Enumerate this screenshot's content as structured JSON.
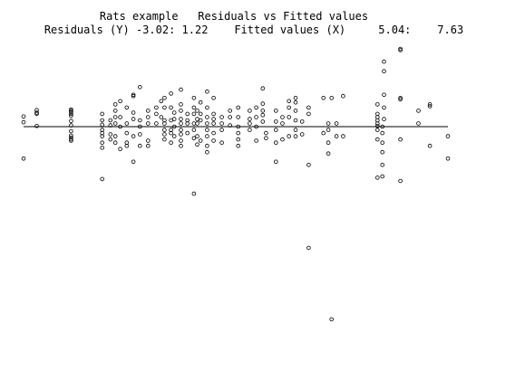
{
  "header": {
    "title": "Rats example   Residuals vs Fitted values",
    "range_line": "Residuals (Y) -3.02: 1.22    Fitted values (X)     5.04:    7.63"
  },
  "chart_data": {
    "type": "scatter",
    "title": "Rats example   Residuals vs Fitted values",
    "xlabel": "Fitted values (X)",
    "ylabel": "Residuals (Y)",
    "xlim": [
      5.04,
      7.63
    ],
    "ylim": [
      -3.02,
      1.22
    ],
    "reference_line_y": 0,
    "grid": false,
    "points": [
      [
        5.04,
        0.16
      ],
      [
        5.04,
        0.07
      ],
      [
        5.04,
        -0.5
      ],
      [
        5.12,
        0.26
      ],
      [
        5.12,
        0.22
      ],
      [
        5.12,
        0.2
      ],
      [
        5.12,
        0.01
      ],
      [
        5.33,
        0.27
      ],
      [
        5.33,
        0.25
      ],
      [
        5.33,
        0.23
      ],
      [
        5.33,
        0.2
      ],
      [
        5.33,
        0.17
      ],
      [
        5.33,
        0.09
      ],
      [
        5.33,
        0.02
      ],
      [
        5.33,
        -0.07
      ],
      [
        5.33,
        -0.14
      ],
      [
        5.33,
        -0.17
      ],
      [
        5.33,
        -0.2
      ],
      [
        5.33,
        -0.22
      ],
      [
        5.52,
        0.2
      ],
      [
        5.52,
        0.1
      ],
      [
        5.52,
        0.03
      ],
      [
        5.52,
        -0.05
      ],
      [
        5.52,
        -0.1
      ],
      [
        5.52,
        -0.15
      ],
      [
        5.52,
        -0.25
      ],
      [
        5.52,
        -0.33
      ],
      [
        5.52,
        -0.82
      ],
      [
        5.57,
        0.1
      ],
      [
        5.57,
        0.02
      ],
      [
        5.57,
        -0.12
      ],
      [
        5.57,
        -0.2
      ],
      [
        5.6,
        0.35
      ],
      [
        5.6,
        0.25
      ],
      [
        5.6,
        0.15
      ],
      [
        5.6,
        0.05
      ],
      [
        5.6,
        -0.15
      ],
      [
        5.6,
        -0.25
      ],
      [
        5.63,
        0.4
      ],
      [
        5.63,
        0.15
      ],
      [
        5.63,
        0.0
      ],
      [
        5.63,
        -0.35
      ],
      [
        5.67,
        0.3
      ],
      [
        5.67,
        0.05
      ],
      [
        5.67,
        -0.1
      ],
      [
        5.67,
        -0.25
      ],
      [
        5.67,
        -0.3
      ],
      [
        5.71,
        0.5
      ],
      [
        5.71,
        0.48
      ],
      [
        5.71,
        0.22
      ],
      [
        5.71,
        0.12
      ],
      [
        5.71,
        -0.15
      ],
      [
        5.71,
        -0.55
      ],
      [
        5.75,
        0.62
      ],
      [
        5.75,
        0.1
      ],
      [
        5.75,
        0.0
      ],
      [
        5.75,
        -0.12
      ],
      [
        5.75,
        -0.3
      ],
      [
        5.8,
        0.25
      ],
      [
        5.8,
        0.15
      ],
      [
        5.8,
        0.05
      ],
      [
        5.8,
        -0.22
      ],
      [
        5.8,
        -0.3
      ],
      [
        5.85,
        0.3
      ],
      [
        5.85,
        0.2
      ],
      [
        5.85,
        0.05
      ],
      [
        5.88,
        0.4
      ],
      [
        5.88,
        0.15
      ],
      [
        5.9,
        0.45
      ],
      [
        5.9,
        0.3
      ],
      [
        5.9,
        0.1
      ],
      [
        5.9,
        0.05
      ],
      [
        5.9,
        -0.05
      ],
      [
        5.9,
        -0.12
      ],
      [
        5.9,
        -0.2
      ],
      [
        5.94,
        0.52
      ],
      [
        5.94,
        0.3
      ],
      [
        5.94,
        0.1
      ],
      [
        5.94,
        -0.05
      ],
      [
        5.94,
        -0.1
      ],
      [
        5.94,
        -0.25
      ],
      [
        5.96,
        0.22
      ],
      [
        5.96,
        0.12
      ],
      [
        5.96,
        0.0
      ],
      [
        5.96,
        -0.15
      ],
      [
        6.0,
        0.58
      ],
      [
        6.0,
        0.35
      ],
      [
        6.0,
        0.25
      ],
      [
        6.0,
        0.12
      ],
      [
        6.0,
        0.05
      ],
      [
        6.0,
        -0.05
      ],
      [
        6.0,
        -0.12
      ],
      [
        6.0,
        -0.22
      ],
      [
        6.0,
        -0.3
      ],
      [
        6.04,
        0.2
      ],
      [
        6.04,
        0.1
      ],
      [
        6.04,
        0.05
      ],
      [
        6.04,
        -0.1
      ],
      [
        6.08,
        0.45
      ],
      [
        6.08,
        0.3
      ],
      [
        6.08,
        0.2
      ],
      [
        6.08,
        0.05
      ],
      [
        6.08,
        -0.05
      ],
      [
        6.08,
        -0.18
      ],
      [
        6.08,
        -1.05
      ],
      [
        6.1,
        0.25
      ],
      [
        6.1,
        0.12
      ],
      [
        6.1,
        0.05
      ],
      [
        6.1,
        -0.15
      ],
      [
        6.1,
        -0.28
      ],
      [
        6.12,
        0.38
      ],
      [
        6.12,
        0.2
      ],
      [
        6.12,
        0.1
      ],
      [
        6.12,
        -0.22
      ],
      [
        6.16,
        0.55
      ],
      [
        6.16,
        0.3
      ],
      [
        6.16,
        0.15
      ],
      [
        6.16,
        0.05
      ],
      [
        6.16,
        -0.05
      ],
      [
        6.16,
        -0.15
      ],
      [
        6.16,
        -0.3
      ],
      [
        6.16,
        -0.4
      ],
      [
        6.2,
        0.45
      ],
      [
        6.2,
        0.2
      ],
      [
        6.2,
        0.12
      ],
      [
        6.2,
        0.05
      ],
      [
        6.2,
        -0.1
      ],
      [
        6.2,
        -0.22
      ],
      [
        6.25,
        0.15
      ],
      [
        6.25,
        0.05
      ],
      [
        6.25,
        -0.05
      ],
      [
        6.25,
        -0.25
      ],
      [
        6.3,
        0.25
      ],
      [
        6.3,
        0.15
      ],
      [
        6.3,
        0.02
      ],
      [
        6.35,
        0.3
      ],
      [
        6.35,
        0.15
      ],
      [
        6.35,
        0.0
      ],
      [
        6.35,
        -0.1
      ],
      [
        6.35,
        -0.2
      ],
      [
        6.35,
        -0.3
      ],
      [
        6.42,
        0.25
      ],
      [
        6.42,
        0.12
      ],
      [
        6.42,
        0.05
      ],
      [
        6.42,
        -0.05
      ],
      [
        6.46,
        0.3
      ],
      [
        6.46,
        0.15
      ],
      [
        6.46,
        0.0
      ],
      [
        6.46,
        -0.22
      ],
      [
        6.5,
        0.6
      ],
      [
        6.5,
        0.36
      ],
      [
        6.5,
        0.25
      ],
      [
        6.5,
        0.18
      ],
      [
        6.5,
        0.08
      ],
      [
        6.52,
        -0.1
      ],
      [
        6.52,
        -0.18
      ],
      [
        6.58,
        -0.55
      ],
      [
        6.58,
        -0.25
      ],
      [
        6.58,
        -0.05
      ],
      [
        6.58,
        0.08
      ],
      [
        6.58,
        0.25
      ],
      [
        6.62,
        0.15
      ],
      [
        6.62,
        0.05
      ],
      [
        6.62,
        -0.2
      ],
      [
        6.66,
        0.4
      ],
      [
        6.66,
        0.3
      ],
      [
        6.66,
        0.15
      ],
      [
        6.66,
        -0.15
      ],
      [
        6.7,
        0.45
      ],
      [
        6.7,
        0.38
      ],
      [
        6.7,
        0.25
      ],
      [
        6.7,
        0.1
      ],
      [
        6.7,
        -0.05
      ],
      [
        6.7,
        -0.15
      ],
      [
        6.74,
        0.08
      ],
      [
        6.74,
        -0.12
      ],
      [
        6.78,
        0.3
      ],
      [
        6.78,
        0.2
      ],
      [
        6.78,
        -0.6
      ],
      [
        6.78,
        -1.9
      ],
      [
        6.87,
        0.45
      ],
      [
        6.87,
        -0.1
      ],
      [
        6.9,
        0.05
      ],
      [
        6.9,
        -0.05
      ],
      [
        6.9,
        -0.25
      ],
      [
        6.9,
        -0.42
      ],
      [
        6.92,
        0.45
      ],
      [
        6.92,
        -3.02
      ],
      [
        6.95,
        0.05
      ],
      [
        6.95,
        -0.15
      ],
      [
        6.99,
        0.48
      ],
      [
        6.99,
        -0.15
      ],
      [
        7.2,
        0.35
      ],
      [
        7.2,
        0.2
      ],
      [
        7.2,
        0.15
      ],
      [
        7.2,
        0.1
      ],
      [
        7.2,
        0.05
      ],
      [
        7.2,
        0.01
      ],
      [
        7.2,
        -0.05
      ],
      [
        7.2,
        -0.2
      ],
      [
        7.2,
        -0.8
      ],
      [
        7.23,
        0.0
      ],
      [
        7.23,
        -0.1
      ],
      [
        7.23,
        -0.25
      ],
      [
        7.23,
        -0.4
      ],
      [
        7.23,
        -0.6
      ],
      [
        7.23,
        -0.78
      ],
      [
        7.24,
        1.02
      ],
      [
        7.24,
        0.87
      ],
      [
        7.24,
        0.5
      ],
      [
        7.24,
        0.3
      ],
      [
        7.24,
        0.12
      ],
      [
        7.34,
        1.22
      ],
      [
        7.34,
        1.2
      ],
      [
        7.34,
        0.45
      ],
      [
        7.34,
        0.43
      ],
      [
        7.34,
        -0.2
      ],
      [
        7.34,
        -0.85
      ],
      [
        7.45,
        0.25
      ],
      [
        7.45,
        0.05
      ],
      [
        7.52,
        0.35
      ],
      [
        7.52,
        0.32
      ],
      [
        7.52,
        -0.3
      ],
      [
        7.63,
        -0.15
      ],
      [
        7.63,
        -0.5
      ]
    ]
  }
}
